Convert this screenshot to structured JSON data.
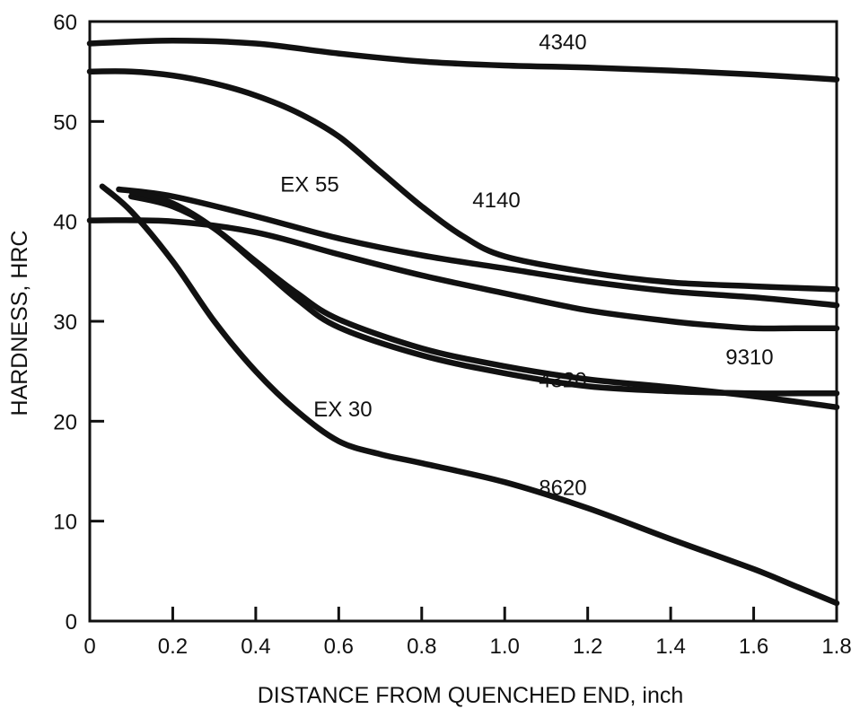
{
  "chart_data": {
    "type": "line",
    "title": "",
    "xlabel": "DISTANCE FROM QUENCHED END, inch",
    "ylabel": "HARDNESS, HRC",
    "xlim": [
      0,
      1.8
    ],
    "ylim": [
      0,
      60
    ],
    "x_ticks": [
      "0",
      "0.2",
      "0.4",
      "0.6",
      "0.8",
      "1.0",
      "1.2",
      "1.4",
      "1.6",
      "1.8"
    ],
    "y_ticks": [
      "0",
      "10",
      "20",
      "30",
      "40",
      "50",
      "60"
    ],
    "grid": false,
    "series": [
      {
        "name": "4340",
        "x": [
          0,
          0.2,
          0.4,
          0.6,
          0.8,
          1.0,
          1.2,
          1.4,
          1.6,
          1.8
        ],
        "y": [
          57.8,
          58.1,
          57.8,
          56.8,
          56.0,
          55.6,
          55.4,
          55.1,
          54.7,
          54.2
        ]
      },
      {
        "name": "4140",
        "x": [
          0,
          0.1,
          0.2,
          0.3,
          0.4,
          0.5,
          0.6,
          0.7,
          0.8,
          0.9,
          1.0,
          1.2,
          1.4,
          1.6,
          1.8
        ],
        "y": [
          55.0,
          55.0,
          54.6,
          53.8,
          52.6,
          50.9,
          48.5,
          45.0,
          41.5,
          38.5,
          36.5,
          34.9,
          33.9,
          33.5,
          33.2
        ]
      },
      {
        "name": "EX 55",
        "x": [
          0.07,
          0.2,
          0.4,
          0.6,
          0.8,
          1.0,
          1.2,
          1.4,
          1.6,
          1.8
        ],
        "y": [
          43.2,
          42.5,
          40.5,
          38.3,
          36.6,
          35.3,
          34.0,
          33.0,
          32.4,
          31.6
        ]
      },
      {
        "name": "9310",
        "x": [
          0,
          0.2,
          0.4,
          0.6,
          0.8,
          1.0,
          1.2,
          1.4,
          1.5,
          1.6,
          1.7,
          1.8
        ],
        "y": [
          40.1,
          40.0,
          38.9,
          36.7,
          34.6,
          32.8,
          31.1,
          30.0,
          29.6,
          29.3,
          29.3,
          29.3
        ]
      },
      {
        "name": "4320",
        "x": [
          0.1,
          0.2,
          0.3,
          0.4,
          0.5,
          0.6,
          0.8,
          1.0,
          1.2,
          1.4,
          1.6,
          1.8
        ],
        "y": [
          42.5,
          41.5,
          39.3,
          36.0,
          32.8,
          30.2,
          27.3,
          25.5,
          24.2,
          23.4,
          22.5,
          21.4
        ]
      },
      {
        "name": "EX 30",
        "x": [
          0.1,
          0.2,
          0.3,
          0.4,
          0.5,
          0.6,
          0.8,
          1.0,
          1.2,
          1.4,
          1.6,
          1.8
        ],
        "y": [
          43.0,
          41.8,
          39.3,
          35.8,
          32.2,
          29.4,
          26.6,
          24.8,
          23.5,
          23.0,
          22.8,
          22.8
        ]
      },
      {
        "name": "8620",
        "x": [
          0.03,
          0.1,
          0.2,
          0.3,
          0.4,
          0.5,
          0.6,
          0.7,
          0.8,
          1.0,
          1.2,
          1.4,
          1.6,
          1.7,
          1.8
        ],
        "y": [
          43.5,
          41.0,
          36.0,
          30.0,
          25.0,
          21.0,
          18.0,
          16.7,
          15.8,
          13.9,
          11.3,
          8.2,
          5.2,
          3.5,
          1.8
        ]
      }
    ],
    "annotations": [
      "4340",
      "4140",
      "EX 55",
      "9310",
      "4320",
      "EX 30",
      "8620"
    ]
  }
}
